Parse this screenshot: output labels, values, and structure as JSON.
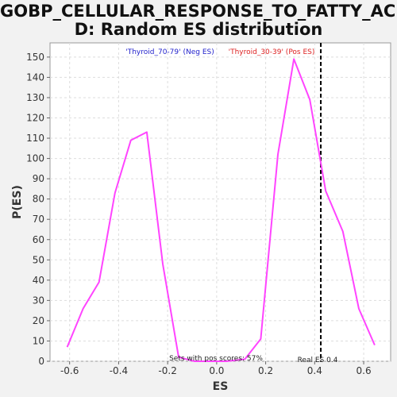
{
  "title_line1": "GOBP_CELLULAR_RESPONSE_TO_FATTY_ACI",
  "title_line2": "D: Random ES distribution",
  "chart_data": {
    "type": "line",
    "title": "GOBP_CELLULAR_RESPONSE_TO_FATTY_ACID: Random ES distribution",
    "xlabel": "ES",
    "ylabel": "P(ES)",
    "xlim": [
      -0.68,
      0.71
    ],
    "ylim": [
      0,
      157
    ],
    "xticks": [
      "-0.6",
      "-0.4",
      "-0.2",
      "0.0",
      "0.2",
      "0.4",
      "0.6"
    ],
    "xtick_values": [
      -0.6,
      -0.4,
      -0.2,
      0.0,
      0.2,
      0.4,
      0.6
    ],
    "yticks": [
      0,
      10,
      20,
      30,
      40,
      50,
      60,
      70,
      80,
      90,
      100,
      110,
      120,
      130,
      140,
      150
    ],
    "grid": true,
    "series": [
      {
        "color": "#ff44ff",
        "x": [
          -0.61,
          -0.545,
          -0.48,
          -0.415,
          -0.35,
          -0.285,
          -0.22,
          -0.155,
          -0.09,
          0.04,
          0.115,
          0.18,
          0.25,
          0.315,
          0.38,
          0.445,
          0.515,
          0.58,
          0.645
        ],
        "y": [
          7,
          26,
          39,
          83,
          109,
          113,
          48,
          2,
          0,
          0,
          1,
          11,
          102,
          149,
          129,
          84,
          64,
          26,
          8
        ]
      }
    ],
    "annotations": {
      "neg_label": "'Thyroid_70-79' (Neg ES)",
      "pos_label": "'Thyroid_30-39' (Pos ES)",
      "neg_color": "#2222cc",
      "pos_color": "#dd2222",
      "pos_scores_text": "Sets with pos scores: 57%",
      "real_es_text": "Real ES 0.4",
      "real_es_value": 0.425
    }
  }
}
